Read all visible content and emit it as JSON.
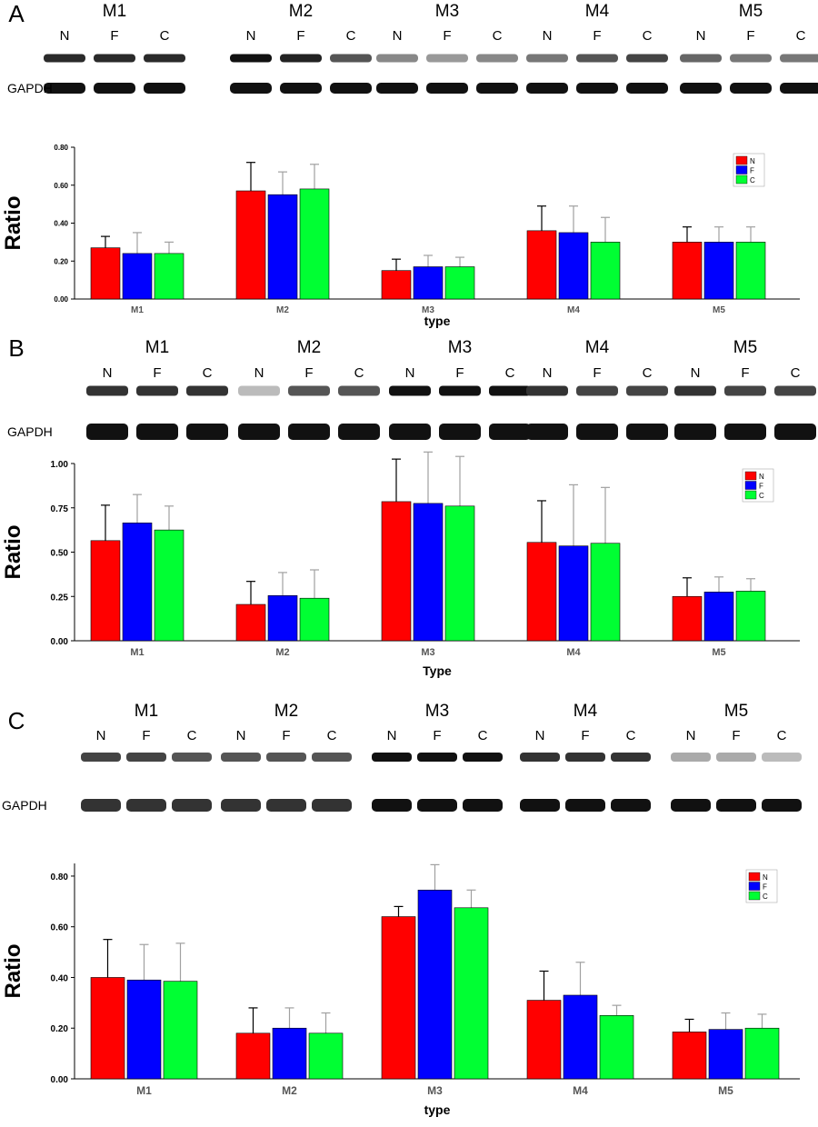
{
  "colors": {
    "N": "#ff0000",
    "F": "#0000ff",
    "C": "#00ff33",
    "axis": "#000000",
    "error": "#a0a0a0"
  },
  "panels": [
    {
      "letter": "A",
      "blot": {
        "groups": [
          "M1",
          "M2",
          "M3",
          "M4",
          "M5"
        ],
        "lanes": [
          "N",
          "F",
          "C"
        ],
        "loading_label": "GAPDH"
      },
      "chart_data": {
        "type": "bar",
        "categories": [
          "M1",
          "M2",
          "M3",
          "M4",
          "M5"
        ],
        "series": [
          {
            "name": "N",
            "values": [
              0.27,
              0.57,
              0.15,
              0.36,
              0.3
            ],
            "errors": [
              0.06,
              0.15,
              0.06,
              0.13,
              0.08
            ]
          },
          {
            "name": "F",
            "values": [
              0.24,
              0.55,
              0.17,
              0.35,
              0.3
            ],
            "errors": [
              0.11,
              0.12,
              0.06,
              0.14,
              0.08
            ]
          },
          {
            "name": "C",
            "values": [
              0.24,
              0.58,
              0.17,
              0.3,
              0.3
            ],
            "errors": [
              0.06,
              0.13,
              0.05,
              0.13,
              0.08
            ]
          }
        ],
        "yticks": [
          "0.00",
          "0.20",
          "0.40",
          "0.60",
          "0.80"
        ],
        "ylim": [
          0,
          0.8
        ],
        "xlabel": "type",
        "ylabel": "Ratio",
        "legend": [
          "N",
          "F",
          "C"
        ],
        "legend_position": "top-right",
        "grid": false
      }
    },
    {
      "letter": "B",
      "blot": {
        "groups": [
          "M1",
          "M2",
          "M3",
          "M4",
          "M5"
        ],
        "lanes": [
          "N",
          "F",
          "C"
        ],
        "loading_label": "GAPDH"
      },
      "chart_data": {
        "type": "bar",
        "categories": [
          "M1",
          "M2",
          "M3",
          "M4",
          "M5"
        ],
        "series": [
          {
            "name": "N",
            "values": [
              0.565,
              0.205,
              0.785,
              0.555,
              0.25
            ],
            "errors": [
              0.2,
              0.13,
              0.24,
              0.235,
              0.105
            ]
          },
          {
            "name": "F",
            "values": [
              0.665,
              0.255,
              0.775,
              0.535,
              0.275
            ],
            "errors": [
              0.16,
              0.13,
              0.29,
              0.345,
              0.085
            ]
          },
          {
            "name": "C",
            "values": [
              0.625,
              0.24,
              0.76,
              0.55,
              0.28
            ],
            "errors": [
              0.135,
              0.16,
              0.28,
              0.315,
              0.07
            ]
          }
        ],
        "yticks": [
          "0.00",
          "0.25",
          "0.50",
          "0.75",
          "1.00"
        ],
        "ylim": [
          0,
          1.0
        ],
        "xlabel": "Type",
        "ylabel": "Ratio",
        "legend": [
          "N",
          "F",
          "C"
        ],
        "legend_position": "top-right",
        "grid": false
      }
    },
    {
      "letter": "C",
      "blot": {
        "groups": [
          "M1",
          "M2",
          "M3",
          "M4",
          "M5"
        ],
        "lanes": [
          "N",
          "F",
          "C"
        ],
        "loading_label": "GAPDH"
      },
      "chart_data": {
        "type": "bar",
        "categories": [
          "M1",
          "M2",
          "M3",
          "M4",
          "M5"
        ],
        "series": [
          {
            "name": "N",
            "values": [
              0.4,
              0.18,
              0.64,
              0.31,
              0.185
            ],
            "errors": [
              0.15,
              0.1,
              0.04,
              0.115,
              0.05
            ]
          },
          {
            "name": "F",
            "values": [
              0.39,
              0.2,
              0.745,
              0.33,
              0.195
            ],
            "errors": [
              0.14,
              0.08,
              0.1,
              0.13,
              0.065
            ]
          },
          {
            "name": "C",
            "values": [
              0.385,
              0.18,
              0.675,
              0.25,
              0.2
            ],
            "errors": [
              0.15,
              0.08,
              0.07,
              0.04,
              0.055
            ]
          }
        ],
        "yticks": [
          "0.00",
          "0.20",
          "0.40",
          "0.60",
          "0.80"
        ],
        "ylim": [
          0,
          0.85
        ],
        "xlabel": "type",
        "ylabel": "Ratio",
        "legend": [
          "N",
          "F",
          "C"
        ],
        "legend_position": "top-right",
        "grid": false
      }
    }
  ]
}
